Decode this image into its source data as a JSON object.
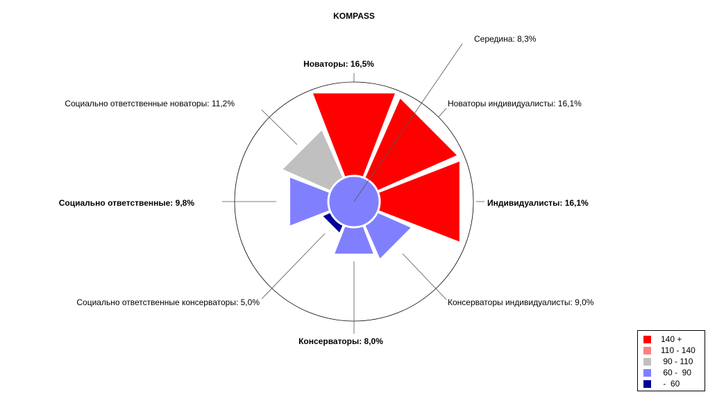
{
  "chart_data": {
    "type": "polar-bar",
    "title": "KOMPASS",
    "colors": {
      "red": "#ff0000",
      "pink": "#ff8080",
      "gray": "#c0c0c0",
      "light_blue": "#8080ff",
      "dark_blue": "#000099"
    },
    "center": {
      "label": "Середина: 8,3%",
      "value": 8.3,
      "color_class": "light_blue"
    },
    "sectors": [
      {
        "key": "novatory",
        "label": "Новаторы: 16,5%",
        "value": 16.5,
        "bold": true,
        "color_class": "red"
      },
      {
        "key": "novatory_individualisty",
        "label": "Новаторы индивидуалисты: 16,1%",
        "value": 16.1,
        "bold": false,
        "color_class": "red"
      },
      {
        "key": "individualisty",
        "label": "Индивидуалисты: 16,1%",
        "value": 16.1,
        "bold": true,
        "color_class": "red"
      },
      {
        "key": "konservatory_individualisty",
        "label": "Консерваторы индивидуалисты: 9,0%",
        "value": 9.0,
        "bold": false,
        "color_class": "light_blue"
      },
      {
        "key": "konservatory",
        "label": "Консерваторы: 8,0%",
        "value": 8.0,
        "bold": true,
        "color_class": "light_blue"
      },
      {
        "key": "soc_otv_konservatory",
        "label": "Социально ответственные консерваторы: 5,0%",
        "value": 5.0,
        "bold": false,
        "color_class": "dark_blue"
      },
      {
        "key": "soc_otv",
        "label": "Социально ответственные: 9,8%",
        "value": 9.8,
        "bold": true,
        "color_class": "light_blue"
      },
      {
        "key": "soc_otv_novatory",
        "label": "Социально ответственные новаторы: 11,2%",
        "value": 11.2,
        "bold": false,
        "color_class": "gray"
      }
    ],
    "legend": {
      "position": "bottom-right",
      "items": [
        {
          "label": "140 +",
          "color_class": "red"
        },
        {
          "label": "110 - 140",
          "color_class": "pink"
        },
        {
          "label": " 90 - 110",
          "color_class": "gray"
        },
        {
          "label": " 60 -  90",
          "color_class": "light_blue"
        },
        {
          "label": " -  60",
          "color_class": "dark_blue"
        }
      ]
    }
  }
}
